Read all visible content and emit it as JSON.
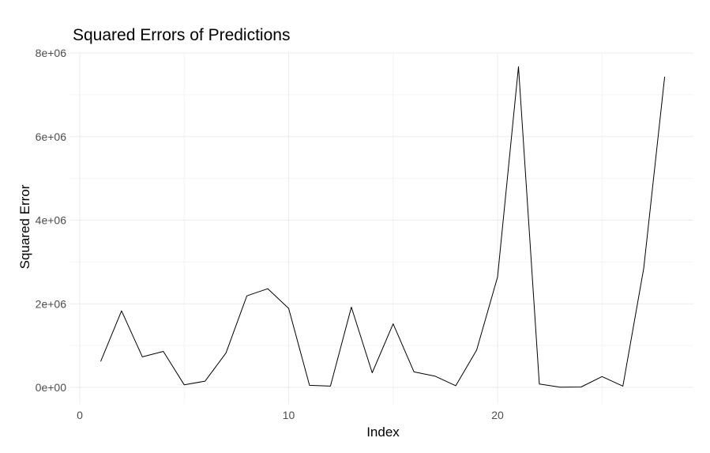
{
  "chart_data": {
    "type": "line",
    "title": "Squared Errors of Predictions",
    "xlabel": "Index",
    "ylabel": "Squared Error",
    "xlim": [
      0,
      29.5
    ],
    "ylim": [
      -400000,
      8000000
    ],
    "x_ticks": [
      0,
      10,
      20
    ],
    "x_tick_labels": [
      "0",
      "10",
      "20"
    ],
    "y_ticks": [
      0,
      2000000,
      4000000,
      6000000,
      8000000
    ],
    "y_tick_labels": [
      "0e+00",
      "2e+06",
      "4e+06",
      "6e+06",
      "8e+06"
    ],
    "grid": true,
    "line_color": "#000000",
    "series": [
      {
        "x": [
          1,
          2,
          3,
          4,
          5,
          6,
          7,
          8,
          9,
          10,
          11,
          12,
          13,
          14,
          15,
          16,
          17,
          18,
          19,
          20,
          21,
          22,
          23,
          24,
          25,
          26,
          27,
          28
        ],
        "values": [
          620000,
          1830000,
          730000,
          860000,
          60000,
          150000,
          820000,
          2190000,
          2360000,
          1890000,
          50000,
          30000,
          1920000,
          350000,
          1520000,
          370000,
          270000,
          40000,
          890000,
          2640000,
          7670000,
          80000,
          5000,
          10000,
          260000,
          30000,
          2850000,
          7430000
        ]
      }
    ]
  }
}
